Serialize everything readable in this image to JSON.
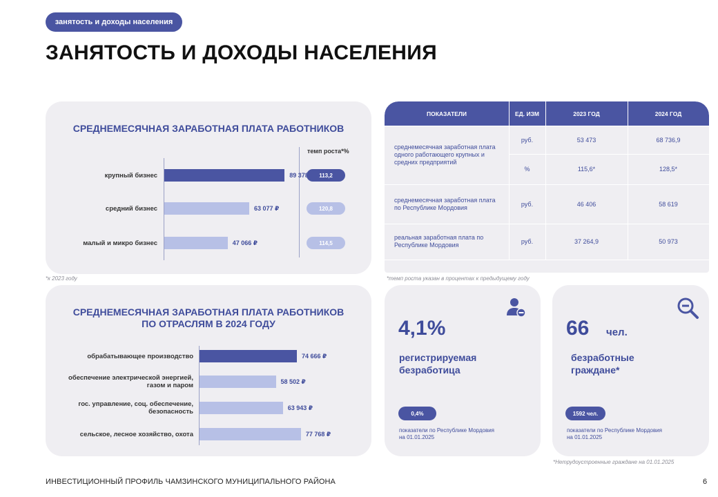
{
  "header": {
    "tag": "занятость и доходы населения",
    "title": "ЗАНЯТОСТЬ И ДОХОДЫ НАСЕЛЕНИЯ"
  },
  "salary_card": {
    "title": "СРЕДНЕМЕСЯЧНАЯ ЗАРАБОТНАЯ ПЛАТА РАБОТНИКОВ",
    "rate_header": "темп роста*%",
    "footnote": "*к 2023 году"
  },
  "table": {
    "headers": [
      "ПОКАЗАТЕЛИ",
      "ЕД. ИЗМ",
      "2023 ГОД",
      "2024 ГОД"
    ],
    "rows": [
      {
        "indicator": "среднемесячная  заработная плата  одного работающего крупных  и средних предприятий",
        "unit": "руб.",
        "y2023": "53 473",
        "y2024": "68 736,9"
      },
      {
        "indicator": "",
        "unit": "%",
        "y2023": "115,6*",
        "y2024": "128,5*"
      },
      {
        "indicator": "среднемесячная  заработная плата  по Республике Мордовия",
        "unit": "руб.",
        "y2023": "46 406",
        "y2024": "58 619"
      },
      {
        "indicator": "реальная  заработная плата по Республике Мордовия",
        "unit": "руб.",
        "y2023": "37 264,9",
        "y2024": "50 973"
      }
    ],
    "footnote": "*темп  роста   указан в процентах  к предыдущему году"
  },
  "industry_card": {
    "title_line1": "СРЕДНЕМЕСЯЧНАЯ ЗАРАБОТНАЯ ПЛАТА РАБОТНИКОВ",
    "title_line2": "ПО ОТРАСЛЯМ В 2024 ГОДУ"
  },
  "unemployment_card": {
    "value": "4,1%",
    "label_line1": "регистрируемая",
    "label_line2": "безработица",
    "pill": "0,4%",
    "note_line1": "показатели  по Республике  Мордовия",
    "note_line2": "на 01.01.2025",
    "icon": "user-minus-icon"
  },
  "unemployed_card": {
    "value": "66",
    "unit": "чел.",
    "label_line1": "безработные",
    "label_line2": "граждане*",
    "pill": "1592  чел.",
    "note_line1": "показатели  по Республике  Мордовия",
    "note_line2": "на 01.01.2025",
    "footnote": "*Нетрудоустроенные   граждане  на  01.01.2025",
    "icon": "search-minus-icon"
  },
  "footer": {
    "left": "ИНВЕСТИЦИОННЫЙ ПРОФИЛЬ ЧАМЗИНСКОГО МУНИЦИПАЛЬНОГО РАЙОНА",
    "page": "6"
  },
  "colors": {
    "accent": "#4a55a2",
    "accent_light": "#b7c0e6",
    "card_bg": "#efeef2",
    "text_blue": "#3f4c9b"
  },
  "chart_data": [
    {
      "type": "bar",
      "orientation": "horizontal",
      "title": "СРЕДНЕМЕСЯЧНАЯ ЗАРАБОТНАЯ ПЛАТА РАБОТНИКОВ",
      "categories": [
        "крупный бизнес",
        "средний бизнес",
        "малый и микро бизнес"
      ],
      "values": [
        89378,
        63077,
        47066
      ],
      "value_labels": [
        "89 378 ₽",
        "63 077 ₽",
        "47 066 ₽"
      ],
      "growth_rate_labels": [
        "113,2",
        "120,8",
        "114,5"
      ],
      "highlight": [
        true,
        false,
        false
      ],
      "xlim": [
        0,
        100000
      ]
    },
    {
      "type": "bar",
      "orientation": "horizontal",
      "title": "СРЕДНЕМЕСЯЧНАЯ ЗАРАБОТНАЯ ПЛАТА РАБОТНИКОВ ПО ОТРАСЛЯМ В 2024 ГОДУ",
      "categories": [
        "обрабатывающее производство",
        "обеспечение  электрической энергией, газом  и паром",
        "гос. управление, соц. обеспечение, безопасность",
        "сельское, лесное хозяйство, охота"
      ],
      "values": [
        74666,
        58502,
        63943,
        77768
      ],
      "value_labels": [
        "74 666 ₽",
        "58 502 ₽",
        "63 943 ₽",
        "77 768 ₽"
      ],
      "highlight": [
        true,
        false,
        false,
        false
      ],
      "xlim": [
        0,
        90000
      ]
    }
  ]
}
